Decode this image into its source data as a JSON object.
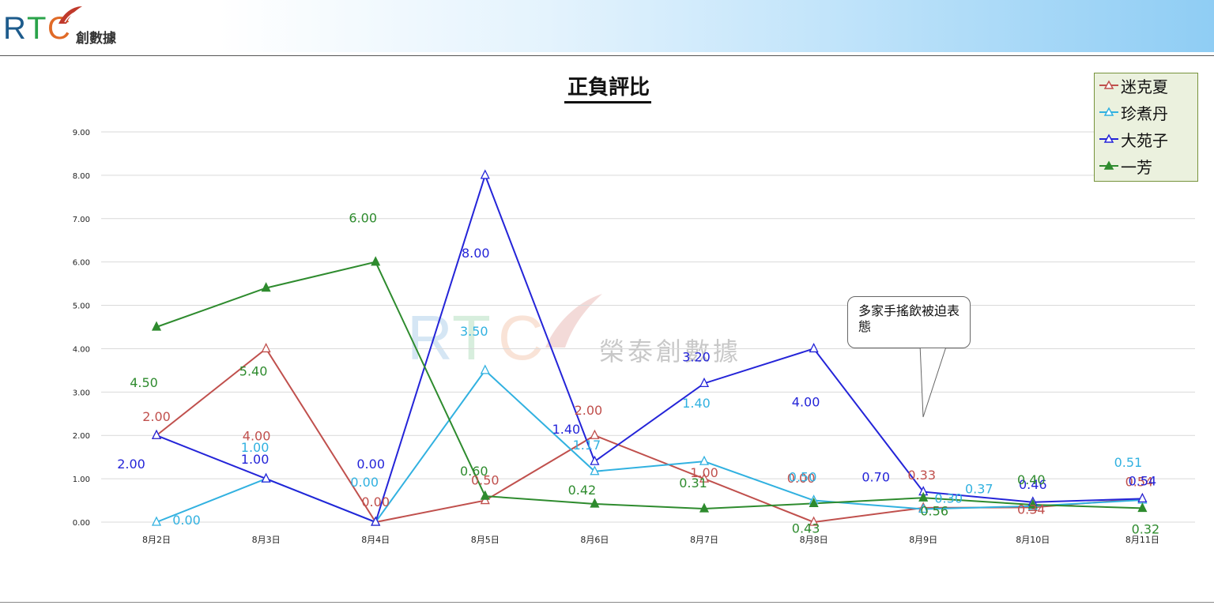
{
  "header": {
    "logo_text": "RTC",
    "logo_subtitle": "創數據"
  },
  "watermark": {
    "logo_text": "RTC",
    "company": "榮泰創數據"
  },
  "callout": {
    "text": "多家手搖飲被迫表態"
  },
  "colors": {
    "迷克夏": "#c0504d",
    "珍煮丹": "#31b1e0",
    "大苑子": "#2424d8",
    "一芳": "#2e8b2e",
    "grid": "#d9d9d9"
  },
  "chart_data": {
    "type": "line",
    "title": "正負評比",
    "xlabel": "",
    "ylabel": "",
    "ylim": [
      0,
      9
    ],
    "yticks": [
      "0.00",
      "1.00",
      "2.00",
      "3.00",
      "4.00",
      "5.00",
      "6.00",
      "7.00",
      "8.00",
      "9.00"
    ],
    "grid": true,
    "legend_position": "top-right",
    "categories": [
      "8月2日",
      "8月3日",
      "8月4日",
      "8月5日",
      "8月6日",
      "8月7日",
      "8月8日",
      "8月9日",
      "8月10日",
      "8月11日"
    ],
    "series": [
      {
        "name": "迷克夏",
        "values": [
          2.0,
          4.0,
          0.0,
          0.5,
          2.0,
          1.0,
          0.0,
          0.33,
          0.34,
          0.54
        ],
        "labels": [
          "2.00",
          "4.00",
          "0.00",
          "0.50",
          "2.00",
          "1.00",
          "0.00",
          "0.33",
          "0.34",
          "0.54"
        ]
      },
      {
        "name": "珍煮丹",
        "values": [
          0.0,
          1.0,
          0.0,
          3.5,
          1.17,
          1.4,
          0.5,
          0.3,
          0.37,
          0.51
        ],
        "labels": [
          "0.00",
          "1.00",
          "0.00",
          "3.50",
          "1.17",
          "1.40",
          "0.50",
          "0.30",
          "0.37",
          "0.51"
        ]
      },
      {
        "name": "大苑子",
        "values": [
          2.0,
          1.0,
          0.0,
          8.0,
          1.4,
          3.2,
          4.0,
          0.7,
          0.46,
          0.54
        ],
        "labels": [
          "2.00",
          "1.00",
          "0.00",
          "8.00",
          "1.40",
          "3.20",
          "4.00",
          "0.70",
          "0.46",
          "0.54"
        ]
      },
      {
        "name": "一芳",
        "values": [
          4.5,
          5.4,
          6.0,
          0.6,
          0.42,
          0.31,
          0.43,
          0.56,
          0.4,
          0.32
        ],
        "labels": [
          "4.50",
          "5.40",
          "6.00",
          "0.60",
          "0.42",
          "0.31",
          "0.43",
          "0.56",
          "0.40",
          "0.32"
        ]
      }
    ]
  }
}
